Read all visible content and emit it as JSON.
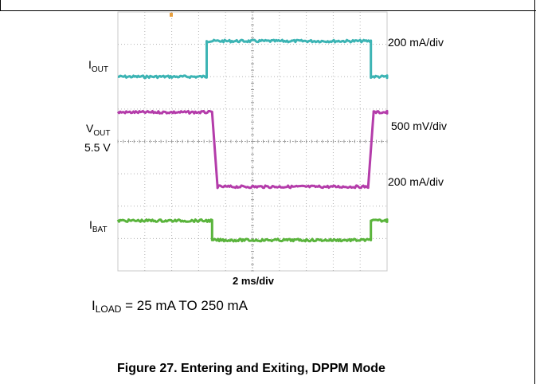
{
  "chart_data": {
    "type": "line",
    "title": "",
    "xlabel": "2 ms/div",
    "xlim": [
      0,
      20
    ],
    "grid": true,
    "divisions": {
      "x": 10,
      "y": 8
    },
    "series": [
      {
        "name": "IOUT",
        "label_main": "I",
        "label_sub": "OUT",
        "color": "#3cb4b4",
        "scale": "200 mA/div",
        "x": [
          0,
          6.6,
          6.6,
          18.8,
          18.8,
          34
        ],
        "y": [
          6.0,
          6.0,
          7.1,
          7.1,
          6.0,
          6.0
        ]
      },
      {
        "name": "VOUT",
        "label_main": "V",
        "label_sub": "OUT",
        "label_extra": "5.5 V",
        "color": "#b43caa",
        "scale": "500 mV/div",
        "x": [
          0,
          7.0,
          7.4,
          18.6,
          19.0,
          34
        ],
        "y": [
          4.9,
          4.9,
          2.6,
          2.6,
          4.9,
          4.9
        ]
      },
      {
        "name": "IBAT",
        "label_main": "I",
        "label_sub": "BAT",
        "color": "#5ab43c",
        "scale": "200 mA/div",
        "x": [
          0,
          7.0,
          7.0,
          18.8,
          18.8,
          34
        ],
        "y": [
          1.55,
          1.55,
          0.95,
          0.95,
          1.55,
          1.55
        ]
      }
    ],
    "scales": [
      "200 mA/div",
      "500 mV/div",
      "200 mA/div"
    ]
  },
  "condition": {
    "main": "I",
    "sub": "LOAD",
    "rest": " = 25 mA TO 250 mA"
  },
  "caption": "Figure 27. Entering and Exiting, DPPM Mode"
}
